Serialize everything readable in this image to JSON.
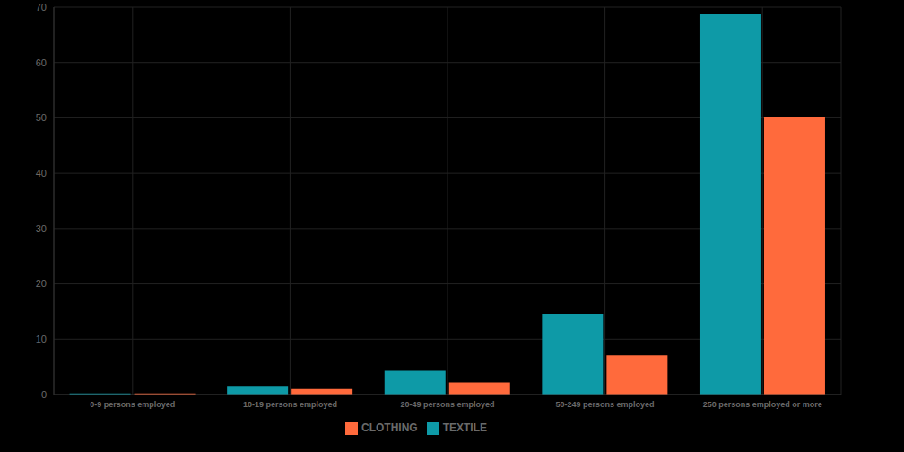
{
  "chart_data": {
    "type": "bar",
    "categories": [
      "0-9 persons employed",
      "10-19 persons employed",
      "20-49 persons employed",
      "50-249 persons employed",
      "250 persons employed or more"
    ],
    "series": [
      {
        "name": "TEXTILE",
        "color": "#0e9aa7",
        "values": [
          0.2,
          1.6,
          4.3,
          14.6,
          68.7
        ]
      },
      {
        "name": "CLOTHING",
        "color": "#ff6a3c",
        "values": [
          0.2,
          1.0,
          2.2,
          7.1,
          50.2
        ]
      }
    ],
    "ylim": [
      0,
      70
    ],
    "yticks": [
      0,
      10,
      20,
      30,
      40,
      50,
      60,
      70
    ],
    "grid": true,
    "legend": "bottom"
  }
}
